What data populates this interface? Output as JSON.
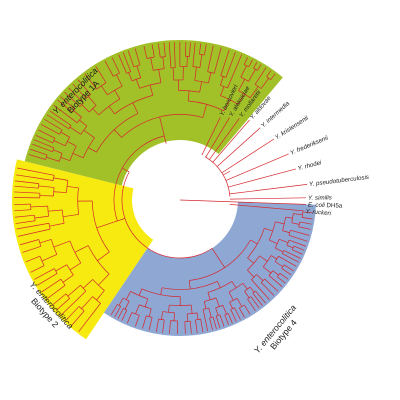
{
  "figure": {
    "type": "circular phylogenetic tree",
    "colors": {
      "background": "#ffffff",
      "branch": "#d4272e",
      "biotype_1A": "#a2c027",
      "biotype_2": "#f6ea10",
      "biotype_4": "#8fa7d3"
    }
  },
  "clades": [
    {
      "label_line1": "Y. enterocolitica",
      "label_line2": "Biotype 1A",
      "color": "#a2c027"
    },
    {
      "label_line1": "Y. enterocolitica",
      "label_line2": "Biotype 2",
      "color": "#f6ea10"
    },
    {
      "label_line1": "Y. enterocolitica",
      "label_line2": "Biotype 4",
      "color": "#8fa7d3"
    }
  ],
  "species": [
    {
      "genus": "Y.",
      "species": "bercovieri",
      "suffix": ""
    },
    {
      "genus": "Y.",
      "species": "aleksiciae",
      "suffix": ""
    },
    {
      "genus": "Y.",
      "species": "mollaretii",
      "suffix": ""
    },
    {
      "genus": "Y.",
      "species": "aldovae",
      "suffix": ""
    },
    {
      "genus": "Y.",
      "species": "intermedia",
      "suffix": ""
    },
    {
      "genus": "Y.",
      "species": "kristensenii",
      "suffix": ""
    },
    {
      "genus": "Y.",
      "species": "frederiksenii",
      "suffix": ""
    },
    {
      "genus": "Y.",
      "species": "rhodei",
      "suffix": ""
    },
    {
      "genus": "Y.",
      "species": "pseudotuberculosis",
      "suffix": ""
    },
    {
      "genus": "Y.",
      "species": "similis",
      "suffix": ""
    },
    {
      "genus": "Y.",
      "species": "ruckeri",
      "suffix": ""
    },
    {
      "genus": "E.",
      "species": "coli",
      "suffix": "DH5a"
    }
  ]
}
